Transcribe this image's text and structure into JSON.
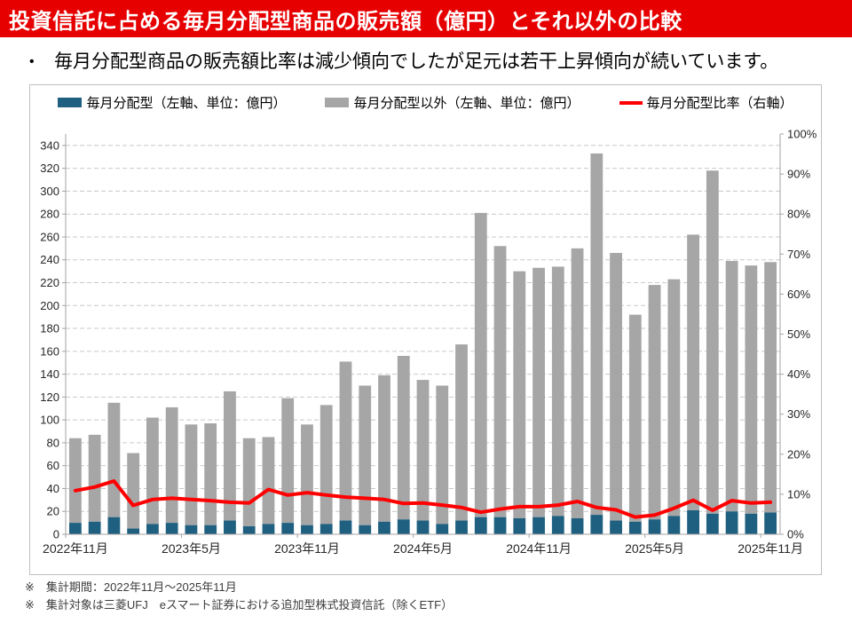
{
  "title": "投資信託に占める毎月分配型商品の販売額（億円）とそれ以外の比較",
  "bullet": {
    "marker": "•",
    "text": "毎月分配型商品の販売額比率は減少傾向でしたが足元は若干上昇傾向が続いています。"
  },
  "legend": {
    "monthly": "毎月分配型（左軸、単位：億円）",
    "other": "毎月分配型以外（左軸、単位：億円）",
    "ratio": "毎月分配型比率（右軸）"
  },
  "footnotes": [
    "※　集計期間：2022年11月～2025年11月",
    "※　集計対象は三菱UFJ　eスマート証券における追加型株式投資信託（除くETF）"
  ],
  "colors": {
    "title_bar": "#e60000",
    "monthly_bar": "#1f6080",
    "other_bar": "#a6a6a6",
    "ratio_line": "#ff0000",
    "gridline": "#c9c9c9",
    "axis": "#a3a3a3",
    "axis_text": "#262626",
    "card_border": "#bfbfbf"
  },
  "chart_data": {
    "type": "bar",
    "subtype": "stacked-bars-with-line-overlay",
    "categories": [
      "2022年11月",
      "2022年12月",
      "2023年1月",
      "2023年2月",
      "2023年3月",
      "2023年4月",
      "2023年5月",
      "2023年6月",
      "2023年7月",
      "2023年8月",
      "2023年9月",
      "2023年10月",
      "2023年11月",
      "2023年12月",
      "2024年1月",
      "2024年2月",
      "2024年3月",
      "2024年4月",
      "2024年5月",
      "2024年6月",
      "2024年7月",
      "2024年8月",
      "2024年9月",
      "2024年10月",
      "2024年11月",
      "2024年12月",
      "2025年1月",
      "2025年2月",
      "2025年3月",
      "2025年4月",
      "2025年5月",
      "2025年6月",
      "2025年7月",
      "2025年8月",
      "2025年9月",
      "2025年10月",
      "2025年11月"
    ],
    "series": [
      {
        "name": "毎月分配型（左軸、単位：億円）",
        "type": "bar",
        "stack": "sales",
        "axis": "left",
        "values": [
          10,
          11,
          15,
          5,
          9,
          10,
          8,
          8,
          12,
          7,
          9,
          10,
          8,
          9,
          12,
          8,
          11,
          13,
          12,
          9,
          12,
          15,
          15,
          14,
          15,
          16,
          14,
          17,
          12,
          11,
          13,
          16,
          21,
          18,
          20,
          18,
          19
        ]
      },
      {
        "name": "毎月分配型以外（左軸、単位：億円）",
        "type": "bar",
        "stack": "sales",
        "axis": "left",
        "values": [
          74,
          76,
          100,
          66,
          93,
          101,
          88,
          89,
          113,
          77,
          76,
          109,
          88,
          104,
          139,
          122,
          128,
          143,
          123,
          121,
          154,
          266,
          237,
          216,
          218,
          218,
          236,
          316,
          234,
          181,
          205,
          207,
          241,
          300,
          219,
          217,
          219
        ]
      },
      {
        "name": "毎月分配型比率（右軸）",
        "type": "line",
        "axis": "right",
        "values_percent": [
          10.9,
          11.8,
          13.3,
          7.2,
          8.7,
          9.0,
          8.7,
          8.4,
          8.0,
          7.8,
          11.2,
          9.8,
          10.4,
          9.8,
          9.3,
          9.0,
          8.7,
          7.7,
          7.8,
          7.3,
          6.7,
          5.5,
          6.3,
          6.9,
          6.9,
          7.3,
          8.2,
          6.7,
          6.1,
          4.3,
          4.8,
          6.5,
          8.5,
          6.0,
          8.4,
          7.8,
          8.0
        ]
      }
    ],
    "stack_totals": [
      84,
      87,
      115,
      71,
      102,
      111,
      96,
      97,
      125,
      84,
      85,
      119,
      96,
      113,
      151,
      130,
      139,
      156,
      135,
      130,
      166,
      281,
      252,
      230,
      233,
      234,
      250,
      333,
      246,
      192,
      218,
      223,
      262,
      318,
      239,
      235,
      238
    ],
    "left_axis": {
      "min": 0,
      "max": 350,
      "tick_step": 20,
      "max_label": 340
    },
    "right_axis": {
      "min": 0,
      "max": 100,
      "tick_step": 10,
      "suffix": "%"
    },
    "x_label_every": 6,
    "x_tick_labels": [
      "2022年11月",
      "2023年5月",
      "2023年11月",
      "2024年5月",
      "2024年11月",
      "2025年5月",
      "2025年11月"
    ],
    "grid": "dashed-horizontal",
    "legend_position": "top"
  }
}
